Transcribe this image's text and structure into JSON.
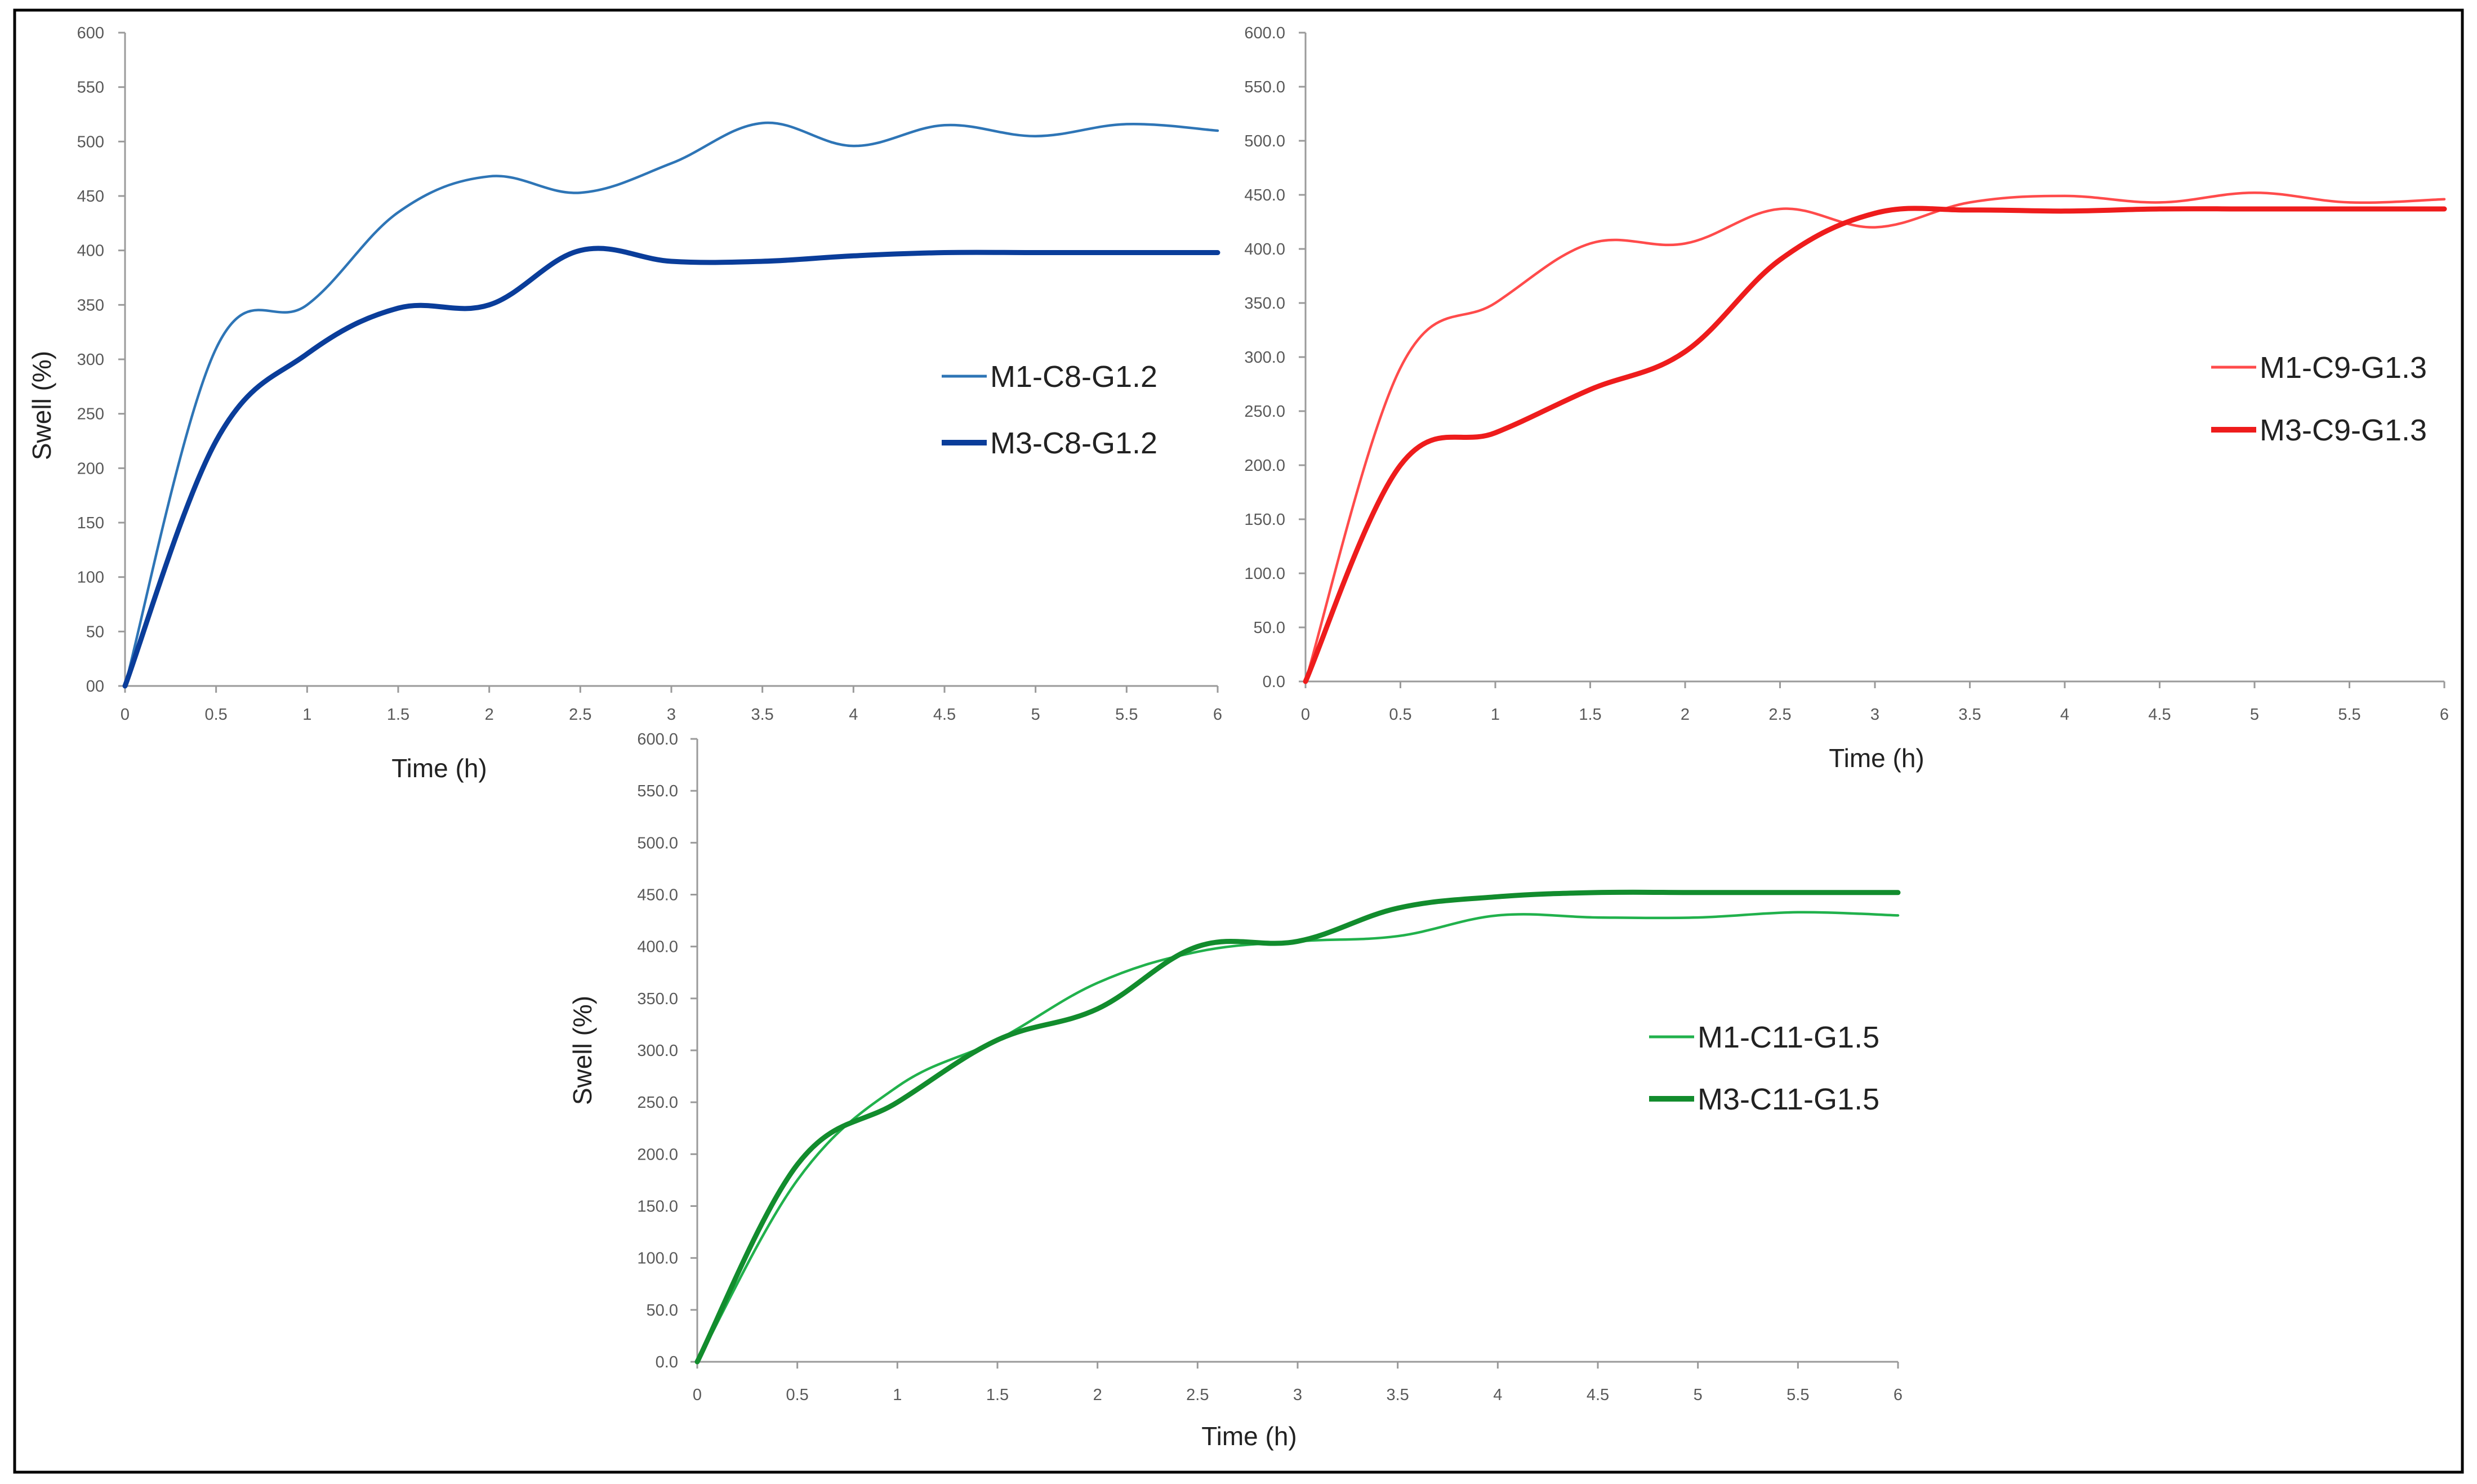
{
  "chart_data": [
    {
      "type": "line",
      "title": "",
      "xlabel": "Time (h)",
      "ylabel": "Swell (%)",
      "xlim": [
        0,
        6
      ],
      "ylim": [
        0,
        600
      ],
      "x_ticks": [
        "0",
        "0.5",
        "1",
        "1.5",
        "2",
        "2.5",
        "3",
        "3.5",
        "4",
        "4.5",
        "5",
        "5.5",
        "6"
      ],
      "y_ticks": [
        "00",
        "50",
        "100",
        "150",
        "200",
        "250",
        "300",
        "350",
        "400",
        "450",
        "500",
        "550",
        "600"
      ],
      "legend_position": "right",
      "series": [
        {
          "name": "M1-C8-G1.2",
          "color": "#2e75b6",
          "weight": "thin",
          "x": [
            0,
            0.5,
            1,
            1.5,
            2,
            2.5,
            3,
            3.5,
            4,
            4.5,
            5,
            5.5,
            6
          ],
          "values": [
            0,
            310,
            350,
            435,
            468,
            453,
            480,
            517,
            496,
            515,
            505,
            516,
            510
          ]
        },
        {
          "name": "M3-C8-G1.2",
          "color": "#0a3d9a",
          "weight": "thick",
          "x": [
            0,
            0.5,
            1,
            1.5,
            2,
            2.5,
            3,
            3.5,
            4,
            4.5,
            5,
            5.5,
            6
          ],
          "values": [
            0,
            225,
            305,
            347,
            350,
            400,
            390,
            390,
            395,
            398,
            398,
            398,
            398
          ]
        }
      ]
    },
    {
      "type": "line",
      "title": "",
      "xlabel": "Time (h)",
      "ylabel": "",
      "xlim": [
        0,
        6
      ],
      "ylim": [
        0,
        600
      ],
      "x_ticks": [
        "0",
        "0.5",
        "1",
        "1.5",
        "2",
        "2.5",
        "3",
        "3.5",
        "4",
        "4.5",
        "5",
        "5.5",
        "6"
      ],
      "y_ticks": [
        "0.0",
        "50.0",
        "100.0",
        "150.0",
        "200.0",
        "250.0",
        "300.0",
        "350.0",
        "400.0",
        "450.0",
        "500.0",
        "550.0",
        "600.0"
      ],
      "legend_position": "right",
      "series": [
        {
          "name": "M1-C9-G1.3",
          "color": "#ff4b4b",
          "weight": "thin",
          "x": [
            0,
            0.5,
            1,
            1.5,
            2,
            2.5,
            3,
            3.5,
            4,
            4.5,
            5,
            5.5,
            6
          ],
          "values": [
            0,
            290,
            350,
            405,
            405,
            437,
            420,
            443,
            449,
            443,
            452,
            443,
            446
          ]
        },
        {
          "name": "M3-C9-G1.3",
          "color": "#ee1c1c",
          "weight": "thick",
          "x": [
            0,
            0.5,
            1,
            1.5,
            2,
            2.5,
            3,
            3.5,
            4,
            4.5,
            5,
            5.5,
            6
          ],
          "values": [
            0,
            200,
            230,
            270,
            305,
            390,
            433,
            436,
            435,
            437,
            437,
            437,
            437
          ]
        }
      ]
    },
    {
      "type": "line",
      "title": "",
      "xlabel": "Time (h)",
      "ylabel": "Swell (%)",
      "xlim": [
        0,
        6
      ],
      "ylim": [
        0,
        600
      ],
      "x_ticks": [
        "0",
        "0.5",
        "1",
        "1.5",
        "2",
        "2.5",
        "3",
        "3.5",
        "4",
        "4.5",
        "5",
        "5.5",
        "6"
      ],
      "y_ticks": [
        "0.0",
        "50.0",
        "100.0",
        "150.0",
        "200.0",
        "250.0",
        "300.0",
        "350.0",
        "400.0",
        "450.0",
        "500.0",
        "550.0",
        "600.0"
      ],
      "legend_position": "right",
      "series": [
        {
          "name": "M1-C11-G1.5",
          "color": "#21b14c",
          "weight": "thin",
          "x": [
            0,
            0.5,
            1,
            1.5,
            2,
            2.5,
            3,
            3.5,
            4,
            4.5,
            5,
            5.5,
            6
          ],
          "values": [
            0,
            175,
            265,
            310,
            365,
            395,
            405,
            410,
            430,
            428,
            428,
            433,
            430
          ]
        },
        {
          "name": "M3-C11-G1.5",
          "color": "#128c2d",
          "weight": "thick",
          "x": [
            0,
            0.5,
            1,
            1.5,
            2,
            2.5,
            3,
            3.5,
            4,
            4.5,
            5,
            5.5,
            6
          ],
          "values": [
            0,
            190,
            250,
            310,
            340,
            400,
            405,
            437,
            448,
            452,
            452,
            452,
            452
          ]
        }
      ]
    }
  ]
}
